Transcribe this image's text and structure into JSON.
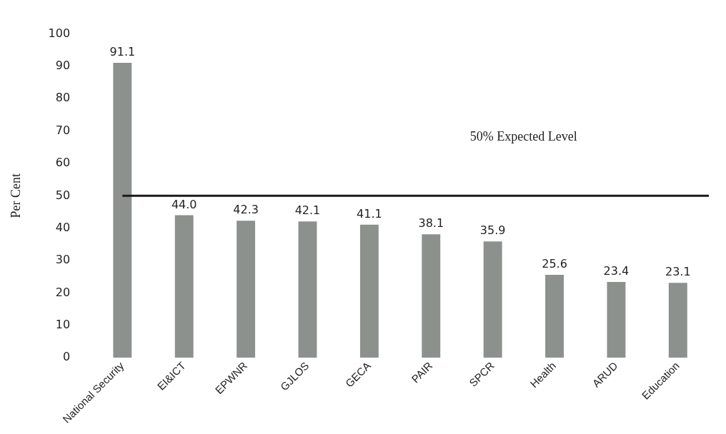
{
  "chart_data": {
    "type": "bar",
    "ylabel": "Per Cent",
    "categories": [
      "National Security",
      "EI&ICT",
      "EPWNR",
      "GJLOS",
      "GECA",
      "PAIR",
      "SPCR",
      "Health",
      "ARUD",
      "Education"
    ],
    "values": [
      91.1,
      44.0,
      42.3,
      42.1,
      41.1,
      38.1,
      35.9,
      25.6,
      23.4,
      23.1
    ],
    "value_labels": [
      "91.1",
      "44.0",
      "42.3",
      "42.1",
      "41.1",
      "38.1",
      "35.9",
      "25.6",
      "23.4",
      "23.1"
    ],
    "color": "#8c918e",
    "ylim": [
      0,
      100
    ],
    "yticks": [
      0,
      10,
      20,
      30,
      40,
      50,
      60,
      70,
      80,
      90,
      100
    ],
    "grid": false,
    "legend": false,
    "ref_lines": [
      {
        "axis": "y",
        "value": 50,
        "label": "50% Expected Level",
        "color": "#1a1a1a"
      }
    ]
  }
}
